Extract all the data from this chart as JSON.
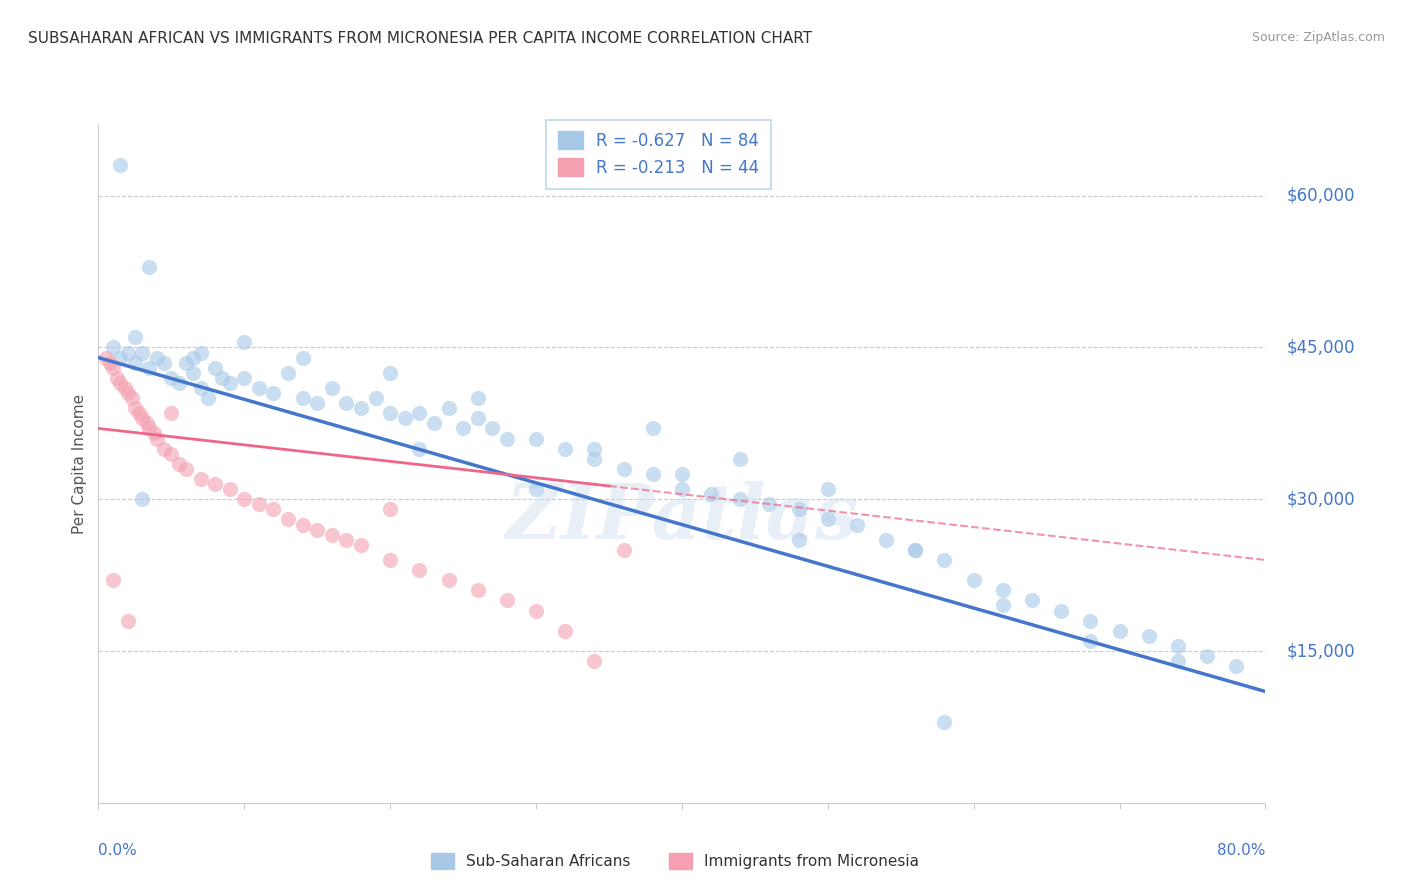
{
  "title": "SUBSAHARAN AFRICAN VS IMMIGRANTS FROM MICRONESIA PER CAPITA INCOME CORRELATION CHART",
  "source": "Source: ZipAtlas.com",
  "ylabel": "Per Capita Income",
  "xlim": [
    0.0,
    80.0
  ],
  "ylim": [
    0,
    67000
  ],
  "blue_R": -0.627,
  "blue_N": 84,
  "pink_R": -0.213,
  "pink_N": 44,
  "blue_color": "#A8C8E8",
  "pink_color": "#F4A0B0",
  "trend_blue": "#4477CC",
  "trend_pink": "#EE6688",
  "legend_label_blue": "Sub-Saharan Africans",
  "legend_label_pink": "Immigrants from Micronesia",
  "watermark": "ZIPatlas",
  "background_color": "#FFFFFF",
  "ytick_color": "#4477CC",
  "ytick_values": [
    15000,
    30000,
    45000,
    60000
  ],
  "ytick_labels": [
    "$15,000",
    "$30,000",
    "$45,000",
    "$60,000"
  ],
  "blue_trend_x0": 0,
  "blue_trend_y0": 44000,
  "blue_trend_x1": 80,
  "blue_trend_y1": 11000,
  "pink_trend_x0": 0,
  "pink_trend_y0": 37000,
  "pink_trend_x1": 80,
  "pink_trend_y1": 24000,
  "pink_solid_end": 35,
  "blue_x": [
    1.0,
    1.5,
    2.0,
    2.5,
    3.0,
    3.5,
    4.0,
    4.5,
    5.0,
    5.5,
    6.0,
    6.5,
    7.0,
    7.5,
    8.0,
    8.5,
    9.0,
    10.0,
    11.0,
    12.0,
    13.0,
    14.0,
    15.0,
    16.0,
    17.0,
    18.0,
    19.0,
    20.0,
    21.0,
    22.0,
    23.0,
    24.0,
    25.0,
    26.0,
    27.0,
    28.0,
    30.0,
    32.0,
    34.0,
    36.0,
    38.0,
    40.0,
    42.0,
    44.0,
    46.0,
    48.0,
    50.0,
    52.0,
    54.0,
    56.0,
    58.0,
    60.0,
    62.0,
    64.0,
    66.0,
    68.0,
    70.0,
    72.0,
    74.0,
    76.0,
    78.0,
    6.5,
    7.0,
    1.5,
    2.5,
    3.5,
    10.0,
    14.0,
    20.0,
    26.0,
    34.0,
    40.0,
    44.0,
    50.0,
    56.0,
    62.0,
    68.0,
    74.0,
    3.0,
    22.0,
    30.0,
    38.0,
    48.0,
    58.0
  ],
  "blue_y": [
    45000,
    44000,
    44500,
    43500,
    44500,
    43000,
    44000,
    43500,
    42000,
    41500,
    43500,
    42500,
    41000,
    40000,
    43000,
    42000,
    41500,
    42000,
    41000,
    40500,
    42500,
    40000,
    39500,
    41000,
    39500,
    39000,
    40000,
    38500,
    38000,
    38500,
    37500,
    39000,
    37000,
    38000,
    37000,
    36000,
    36000,
    35000,
    34000,
    33000,
    32500,
    31000,
    30500,
    30000,
    29500,
    29000,
    28000,
    27500,
    26000,
    25000,
    24000,
    22000,
    21000,
    20000,
    19000,
    18000,
    17000,
    16500,
    15500,
    14500,
    13500,
    44000,
    44500,
    63000,
    46000,
    53000,
    45500,
    44000,
    42500,
    40000,
    35000,
    32500,
    34000,
    31000,
    25000,
    19500,
    16000,
    14000,
    30000,
    35000,
    31000,
    37000,
    26000,
    8000
  ],
  "pink_x": [
    0.5,
    0.8,
    1.0,
    1.3,
    1.5,
    1.8,
    2.0,
    2.3,
    2.5,
    2.8,
    3.0,
    3.3,
    3.5,
    3.8,
    4.0,
    4.5,
    5.0,
    5.5,
    6.0,
    7.0,
    8.0,
    9.0,
    10.0,
    11.0,
    12.0,
    13.0,
    14.0,
    15.0,
    16.0,
    17.0,
    18.0,
    20.0,
    22.0,
    24.0,
    26.0,
    28.0,
    30.0,
    32.0,
    34.0,
    36.0,
    1.0,
    2.0,
    5.0,
    20.0
  ],
  "pink_y": [
    44000,
    43500,
    43000,
    42000,
    41500,
    41000,
    40500,
    40000,
    39000,
    38500,
    38000,
    37500,
    37000,
    36500,
    36000,
    35000,
    34500,
    33500,
    33000,
    32000,
    31500,
    31000,
    30000,
    29500,
    29000,
    28000,
    27500,
    27000,
    26500,
    26000,
    25500,
    24000,
    23000,
    22000,
    21000,
    20000,
    19000,
    17000,
    14000,
    25000,
    22000,
    18000,
    38500,
    29000
  ]
}
